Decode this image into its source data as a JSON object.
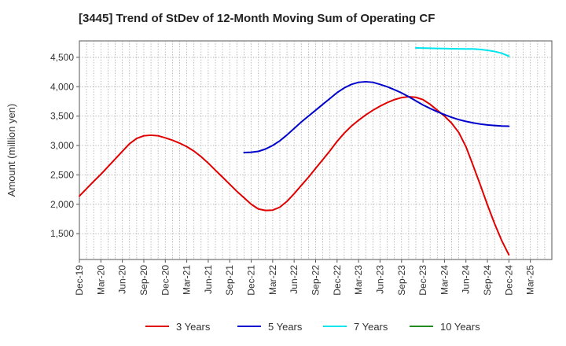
{
  "chart_data": {
    "type": "line",
    "title": "[3445]  Trend of StDev of 12-Month Moving Sum of Operating CF",
    "xlabel": "",
    "ylabel": "Amount (million yen)",
    "x_start_index": 0,
    "x_end_index": 22,
    "ylim": [
      1060,
      4780
    ],
    "yticks": [
      1500,
      2000,
      2500,
      3000,
      3500,
      4000,
      4500
    ],
    "ytick_labels": [
      "1,500",
      "2,000",
      "2,500",
      "3,000",
      "3,500",
      "4,000",
      "4,500"
    ],
    "categories": [
      "Dec-19",
      "Mar-20",
      "Jun-20",
      "Sep-20",
      "Dec-20",
      "Mar-21",
      "Jun-21",
      "Sep-21",
      "Dec-21",
      "Mar-22",
      "Jun-22",
      "Sep-22",
      "Dec-22",
      "Mar-23",
      "Jun-23",
      "Sep-23",
      "Dec-23",
      "Mar-24",
      "Jun-24",
      "Sep-24",
      "Dec-24",
      "Mar-25"
    ],
    "grid": true,
    "legend_position": "bottom",
    "series": [
      {
        "name": "3 Years",
        "color": "#e00000",
        "x": [
          0,
          0.667,
          1,
          1.333,
          1.667,
          2,
          2.333,
          2.667,
          3,
          3.333,
          3.667,
          4,
          4.333,
          4.667,
          5,
          5.333,
          5.667,
          6,
          6.333,
          6.667,
          7,
          7.333,
          7.667,
          8,
          8.333,
          8.667,
          9,
          9.333,
          9.667,
          10,
          10.333,
          10.667,
          11,
          11.333,
          11.667,
          12,
          12.333,
          12.667,
          13,
          13.333,
          13.667,
          14,
          14.333,
          14.667,
          15,
          15.333,
          15.667,
          16,
          16.333,
          16.667,
          17,
          17.333,
          17.667,
          18,
          18.333,
          18.667,
          19,
          19.333,
          19.667,
          20
        ],
        "values": [
          2140,
          2390,
          2510,
          2640,
          2770,
          2900,
          3030,
          3120,
          3165,
          3175,
          3165,
          3130,
          3090,
          3040,
          2980,
          2905,
          2810,
          2700,
          2580,
          2460,
          2340,
          2220,
          2110,
          2000,
          1920,
          1895,
          1900,
          1950,
          2050,
          2180,
          2320,
          2460,
          2610,
          2760,
          2910,
          3070,
          3210,
          3330,
          3430,
          3520,
          3600,
          3670,
          3730,
          3780,
          3815,
          3830,
          3820,
          3780,
          3700,
          3600,
          3500,
          3380,
          3220,
          2980,
          2660,
          2330,
          1990,
          1670,
          1380,
          1140
        ]
      },
      {
        "name": "5 Years",
        "color": "#0000cc",
        "x": [
          7.667,
          8,
          8.333,
          8.667,
          9,
          9.333,
          9.667,
          10,
          10.333,
          10.667,
          11,
          11.333,
          11.667,
          12,
          12.333,
          12.667,
          13,
          13.333,
          13.667,
          14,
          14.333,
          14.667,
          15,
          15.333,
          15.667,
          16,
          16.333,
          16.667,
          17,
          17.333,
          17.667,
          18,
          18.333,
          18.667,
          19,
          19.333,
          19.667,
          20
        ],
        "values": [
          2880,
          2885,
          2900,
          2940,
          3000,
          3080,
          3180,
          3290,
          3400,
          3500,
          3600,
          3700,
          3800,
          3900,
          3980,
          4040,
          4075,
          4085,
          4075,
          4040,
          4000,
          3950,
          3895,
          3830,
          3760,
          3690,
          3630,
          3575,
          3525,
          3480,
          3440,
          3410,
          3385,
          3365,
          3350,
          3340,
          3332,
          3328
        ]
      },
      {
        "name": "7 Years",
        "color": "#00e5ee",
        "x": [
          15.667,
          16,
          16.333,
          16.667,
          17,
          17.333,
          17.667,
          18,
          18.333,
          18.667,
          19,
          19.333,
          19.667,
          20
        ],
        "values": [
          4660,
          4658,
          4655,
          4652,
          4649,
          4646,
          4644,
          4643,
          4642,
          4635,
          4620,
          4600,
          4570,
          4520
        ]
      },
      {
        "name": "10 Years",
        "color": "#228b22",
        "x": [],
        "values": []
      }
    ]
  }
}
